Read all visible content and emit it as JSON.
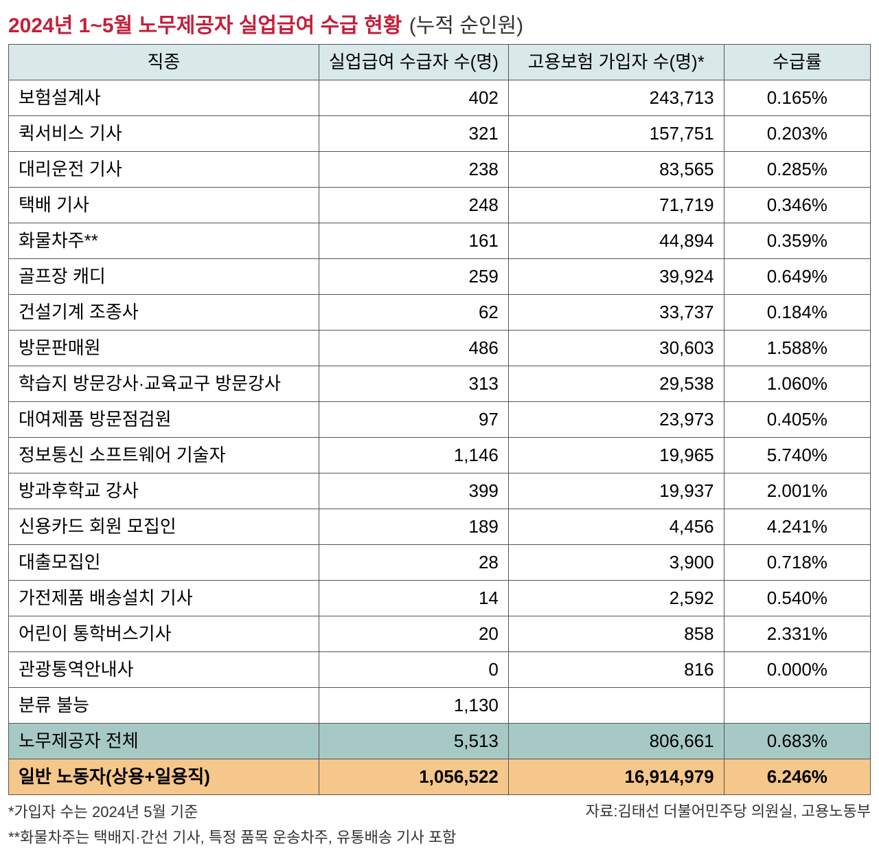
{
  "title": {
    "main": "2024년 1~5월 노무제공자 실업급여 수급 현황",
    "sub": "(누적 순인원)"
  },
  "columns": {
    "job": "직종",
    "recipients": "실업급여 수급자 수(명)",
    "insured": "고용보험 가입자 수(명)*",
    "rate": "수급률"
  },
  "col_widths": {
    "job": "36%",
    "recip": "22%",
    "insured": "25%",
    "rate": "17%"
  },
  "rows": [
    {
      "job": "보험설계사",
      "recipients": "402",
      "insured": "243,713",
      "rate": "0.165%"
    },
    {
      "job": "퀵서비스 기사",
      "recipients": "321",
      "insured": "157,751",
      "rate": "0.203%"
    },
    {
      "job": "대리운전 기사",
      "recipients": "238",
      "insured": "83,565",
      "rate": "0.285%"
    },
    {
      "job": "택배 기사",
      "recipients": "248",
      "insured": "71,719",
      "rate": "0.346%"
    },
    {
      "job": "화물차주**",
      "recipients": "161",
      "insured": "44,894",
      "rate": "0.359%"
    },
    {
      "job": "골프장 캐디",
      "recipients": "259",
      "insured": "39,924",
      "rate": "0.649%"
    },
    {
      "job": "건설기계 조종사",
      "recipients": "62",
      "insured": "33,737",
      "rate": "0.184%"
    },
    {
      "job": "방문판매원",
      "recipients": "486",
      "insured": "30,603",
      "rate": "1.588%"
    },
    {
      "job": "학습지 방문강사·교육교구 방문강사",
      "recipients": "313",
      "insured": "29,538",
      "rate": "1.060%"
    },
    {
      "job": "대여제품 방문점검원",
      "recipients": "97",
      "insured": "23,973",
      "rate": "0.405%"
    },
    {
      "job": "정보통신 소프트웨어 기술자",
      "recipients": "1,146",
      "insured": "19,965",
      "rate": "5.740%"
    },
    {
      "job": "방과후학교 강사",
      "recipients": "399",
      "insured": "19,937",
      "rate": "2.001%"
    },
    {
      "job": "신용카드 회원 모집인",
      "recipients": "189",
      "insured": "4,456",
      "rate": "4.241%"
    },
    {
      "job": "대출모집인",
      "recipients": "28",
      "insured": "3,900",
      "rate": "0.718%"
    },
    {
      "job": "가전제품 배송설치 기사",
      "recipients": "14",
      "insured": "2,592",
      "rate": "0.540%"
    },
    {
      "job": "어린이 통학버스기사",
      "recipients": "20",
      "insured": "858",
      "rate": "2.331%"
    },
    {
      "job": "관광통역안내사",
      "recipients": "0",
      "insured": "816",
      "rate": "0.000%"
    },
    {
      "job": "분류 불능",
      "recipients": "1,130",
      "insured": "",
      "rate": ""
    }
  ],
  "subtotal": {
    "job": "노무제공자 전체",
    "recipients": "5,513",
    "insured": "806,661",
    "rate": "0.683%"
  },
  "total": {
    "job": "일반 노동자(상용+일용직)",
    "recipients": "1,056,522",
    "insured": "16,914,979",
    "rate": "6.246%"
  },
  "notes": {
    "n1": "*가입자 수는 2024년 5월 기준",
    "n2": "**화물차주는 택배지·간선 기사, 특정 품목 운송차주, 유통배송 기사 포함"
  },
  "source": "자료:김태선 더불어민주당 의원실, 고용노동부",
  "colors": {
    "title_main": "#c41e3a",
    "header_bg": "#d9e8e8",
    "subtotal_bg": "#a6c9c5",
    "total_bg": "#f5c78a",
    "border": "#555555",
    "text": "#333333",
    "row_bg": "#ffffff"
  },
  "font_sizes": {
    "title": 30,
    "cell": 26,
    "footer": 22
  }
}
